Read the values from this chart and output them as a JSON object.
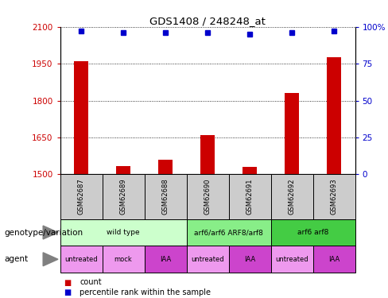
{
  "title": "GDS1408 / 248248_at",
  "samples": [
    "GSM62687",
    "GSM62689",
    "GSM62688",
    "GSM62690",
    "GSM62691",
    "GSM62692",
    "GSM62693"
  ],
  "bar_values": [
    1960,
    1535,
    1560,
    1660,
    1530,
    1830,
    1975
  ],
  "percentile_values": [
    97,
    96,
    96,
    96,
    95,
    96,
    97
  ],
  "ylim_left": [
    1500,
    2100
  ],
  "ylim_right": [
    0,
    100
  ],
  "yticks_left": [
    1500,
    1650,
    1800,
    1950,
    2100
  ],
  "yticks_right": [
    0,
    25,
    50,
    75,
    100
  ],
  "bar_color": "#cc0000",
  "dot_color": "#0000cc",
  "left_tick_color": "#cc0000",
  "right_tick_color": "#0000cc",
  "group_defs": [
    {
      "label": "wild type",
      "cols": [
        0,
        1,
        2
      ],
      "color": "#ccffcc"
    },
    {
      "label": "arf6/arf6 ARF8/arf8",
      "cols": [
        3,
        4
      ],
      "color": "#88ee88"
    },
    {
      "label": "arf6 arf8",
      "cols": [
        5,
        6
      ],
      "color": "#44cc44"
    }
  ],
  "agent_labels": [
    "untreated",
    "mock",
    "IAA",
    "untreated",
    "IAA",
    "untreated",
    "IAA"
  ],
  "agent_colors": [
    "#ee99ee",
    "#ee99ee",
    "#cc44cc",
    "#ee99ee",
    "#cc44cc",
    "#ee99ee",
    "#cc44cc"
  ],
  "sample_box_color": "#cccccc",
  "legend_bar_label": "count",
  "legend_dot_label": "percentile rank within the sample"
}
